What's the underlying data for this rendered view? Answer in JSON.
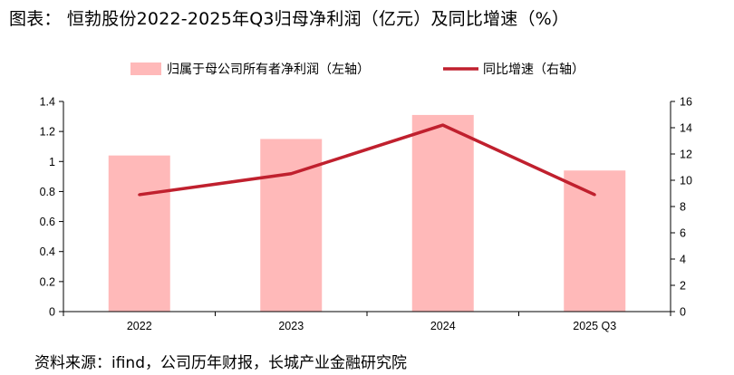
{
  "title": "图表：  恒勃股份2022-2025年Q3归母净利润（亿元）及同比增速（%）",
  "source": "资料来源：ifind，公司历年财报，长城产业金融研究院",
  "colors": {
    "bar": "#ffb9b9",
    "line": "#c0202e",
    "axis": "#000000"
  },
  "chart_data": {
    "type": "bar+line",
    "categories": [
      "2022",
      "2023",
      "2024",
      "2025 Q3"
    ],
    "legend_position": "top-center",
    "series": [
      {
        "name": "归属于母公司所有者净利润（左轴）",
        "type": "bar",
        "axis": "left",
        "values": [
          1.04,
          1.15,
          1.31,
          0.94
        ]
      },
      {
        "name": "同比增速（右轴）",
        "type": "line",
        "axis": "right",
        "values": [
          8.9,
          10.5,
          14.2,
          8.9
        ]
      }
    ],
    "y_left": {
      "min": 0,
      "max": 1.4,
      "ticks": [
        "0",
        "0.2",
        "0.4",
        "0.6",
        "0.8",
        "1",
        "1.2",
        "1.4"
      ]
    },
    "y_right": {
      "min": 0,
      "max": 16,
      "ticks": [
        "0",
        "2",
        "4",
        "6",
        "8",
        "10",
        "12",
        "14",
        "16"
      ]
    },
    "grid": false
  }
}
